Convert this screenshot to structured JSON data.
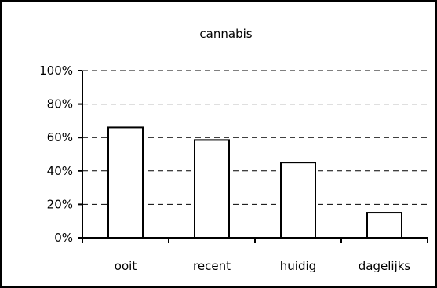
{
  "chart_data": {
    "type": "bar",
    "title": "cannabis",
    "xlabel": "",
    "ylabel": "",
    "categories": [
      "ooit",
      "recent",
      "huidig",
      "dagelijks"
    ],
    "values": [
      66,
      58.5,
      45,
      15
    ],
    "ylim": [
      0,
      100
    ],
    "y_ticks": [
      "0%",
      "20%",
      "40%",
      "60%",
      "80%",
      "100%"
    ],
    "y_tick_values": [
      0,
      20,
      40,
      60,
      80,
      100
    ],
    "grid": "horizontal dashed",
    "legend": "none",
    "colors": {
      "bar_fill": "#ffffff",
      "bar_stroke": "#000000",
      "grid": "#000000",
      "frame": "#000000"
    }
  }
}
